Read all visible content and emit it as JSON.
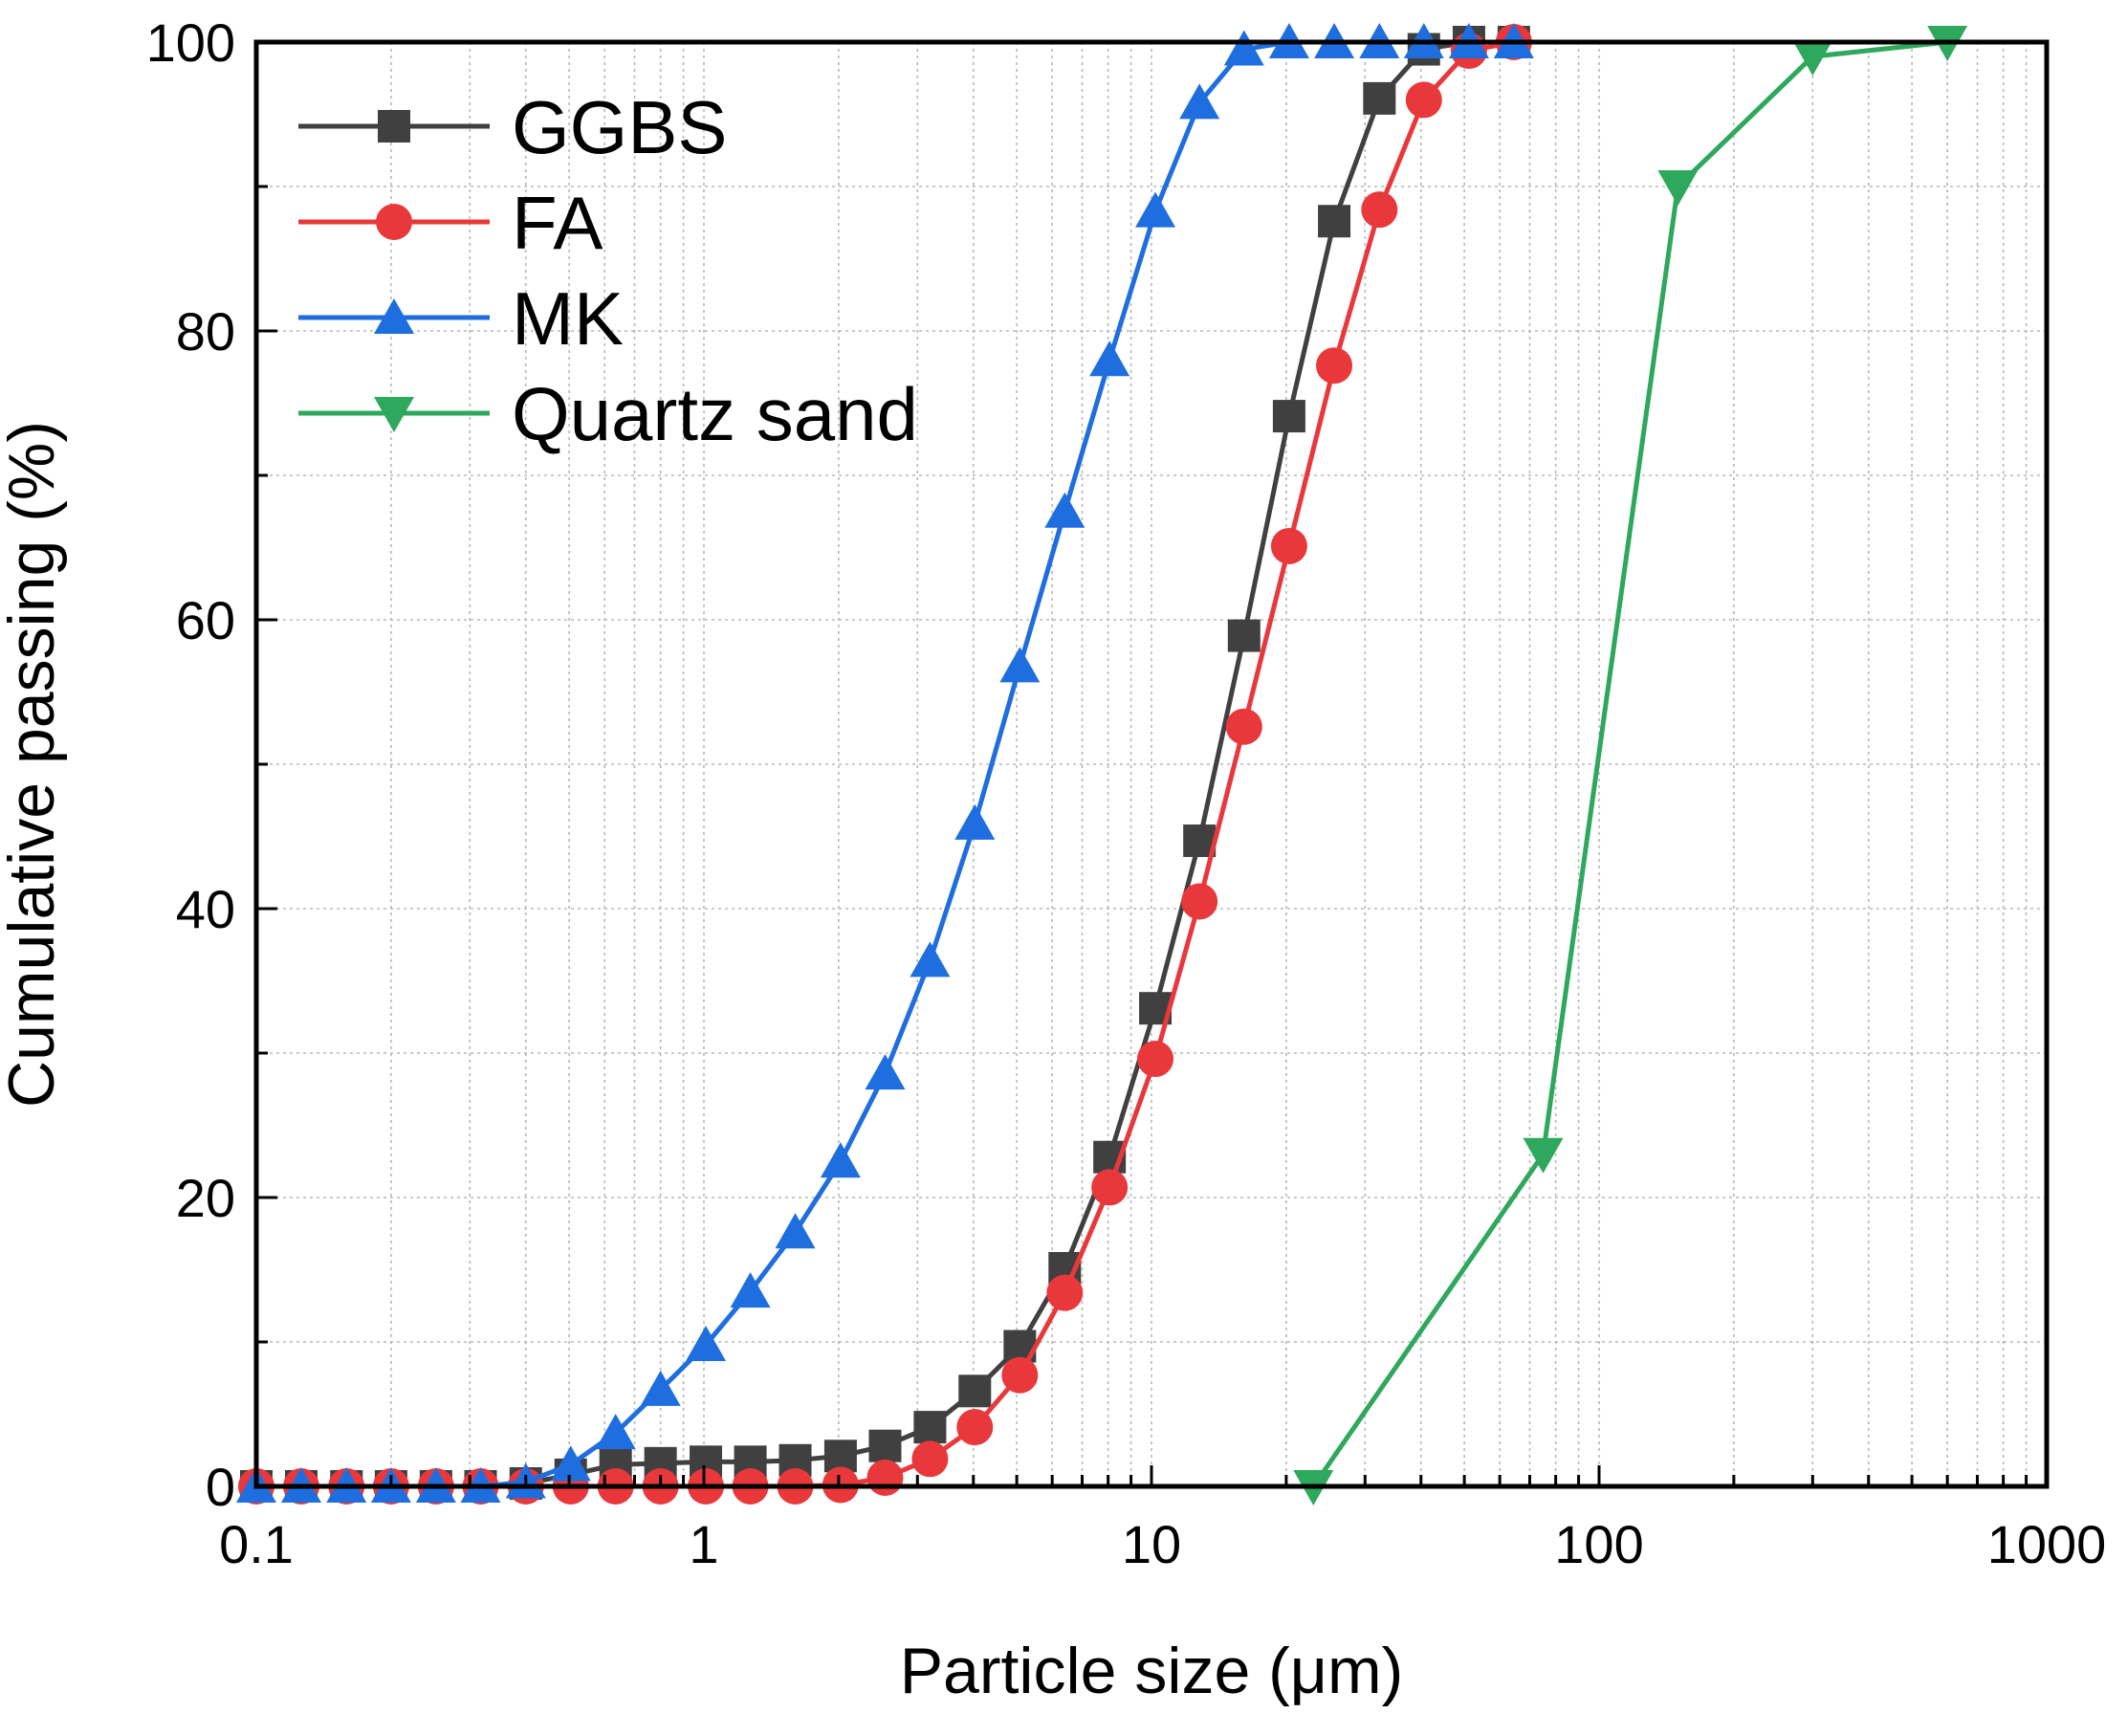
{
  "chart_data": {
    "type": "line",
    "xscale": "log",
    "xlabel": "Particle size (μm)",
    "ylabel": "Cumulative passing (%)",
    "xlim": [
      0.1,
      1000
    ],
    "ylim": [
      0,
      100
    ],
    "xticks": [
      0.1,
      1,
      10,
      100,
      1000
    ],
    "xtick_labels": [
      "0.1",
      "1",
      "10",
      "100",
      "1000"
    ],
    "yticks": [
      0,
      20,
      40,
      60,
      80,
      100
    ],
    "ytick_labels": [
      "0",
      "20",
      "40",
      "60",
      "80",
      "100"
    ],
    "grid": true,
    "legend_position": "top-left",
    "series": [
      {
        "name": "GGBS",
        "color": "#404040",
        "marker": "square",
        "x": [
          0.1,
          0.126,
          0.159,
          0.2,
          0.252,
          0.317,
          0.4,
          0.504,
          0.635,
          0.8,
          1.01,
          1.27,
          1.6,
          2.02,
          2.54,
          3.2,
          4.03,
          5.08,
          6.4,
          8.06,
          10.2,
          12.8,
          16.1,
          20.3,
          25.6,
          32.3,
          40.6,
          51.2,
          64.5
        ],
        "y": [
          0,
          0,
          0,
          0,
          0,
          0,
          0.2,
          0.8,
          1.5,
          1.6,
          1.7,
          1.7,
          1.8,
          2.1,
          2.8,
          4.1,
          6.6,
          9.7,
          15.1,
          22.8,
          33.1,
          44.7,
          58.9,
          74.1,
          87.6,
          96.1,
          99.5,
          100,
          100
        ]
      },
      {
        "name": "FA",
        "color": "#e8383b",
        "marker": "circle",
        "x": [
          0.1,
          0.126,
          0.159,
          0.2,
          0.252,
          0.317,
          0.4,
          0.504,
          0.635,
          0.8,
          1.01,
          1.27,
          1.6,
          2.02,
          2.54,
          3.2,
          4.03,
          5.08,
          6.4,
          8.06,
          10.2,
          12.8,
          16.1,
          20.3,
          25.6,
          32.3,
          40.6,
          51.2,
          64.5
        ],
        "y": [
          0,
          0,
          0,
          0,
          0,
          0,
          0,
          0,
          0,
          0,
          0,
          0,
          0,
          0.1,
          0.6,
          1.9,
          4.1,
          7.7,
          13.4,
          20.7,
          29.6,
          40.5,
          52.6,
          65.1,
          77.6,
          88.4,
          96,
          99.4,
          100
        ]
      },
      {
        "name": "MK",
        "color": "#1e6ee0",
        "marker": "triangle-up",
        "x": [
          0.1,
          0.126,
          0.159,
          0.2,
          0.252,
          0.317,
          0.4,
          0.504,
          0.635,
          0.8,
          1.01,
          1.27,
          1.6,
          2.02,
          2.54,
          3.2,
          4.03,
          5.08,
          6.4,
          8.06,
          10.2,
          12.8,
          16.1,
          20.3,
          25.6,
          32.3,
          40.6,
          51.2,
          64.5
        ],
        "y": [
          0,
          0,
          0,
          0,
          0,
          0,
          0.3,
          1.5,
          3.7,
          6.7,
          9.8,
          13.5,
          17.6,
          22.5,
          28.6,
          36.4,
          45.9,
          56.8,
          67.5,
          78,
          88.3,
          95.8,
          99.5,
          100,
          100,
          100,
          100,
          100,
          100
        ]
      },
      {
        "name": "Quartz sand",
        "color": "#2ea85c",
        "marker": "triangle-down",
        "x": [
          23,
          75,
          150,
          300,
          600
        ],
        "y": [
          0,
          23,
          90,
          99,
          100
        ]
      }
    ]
  }
}
